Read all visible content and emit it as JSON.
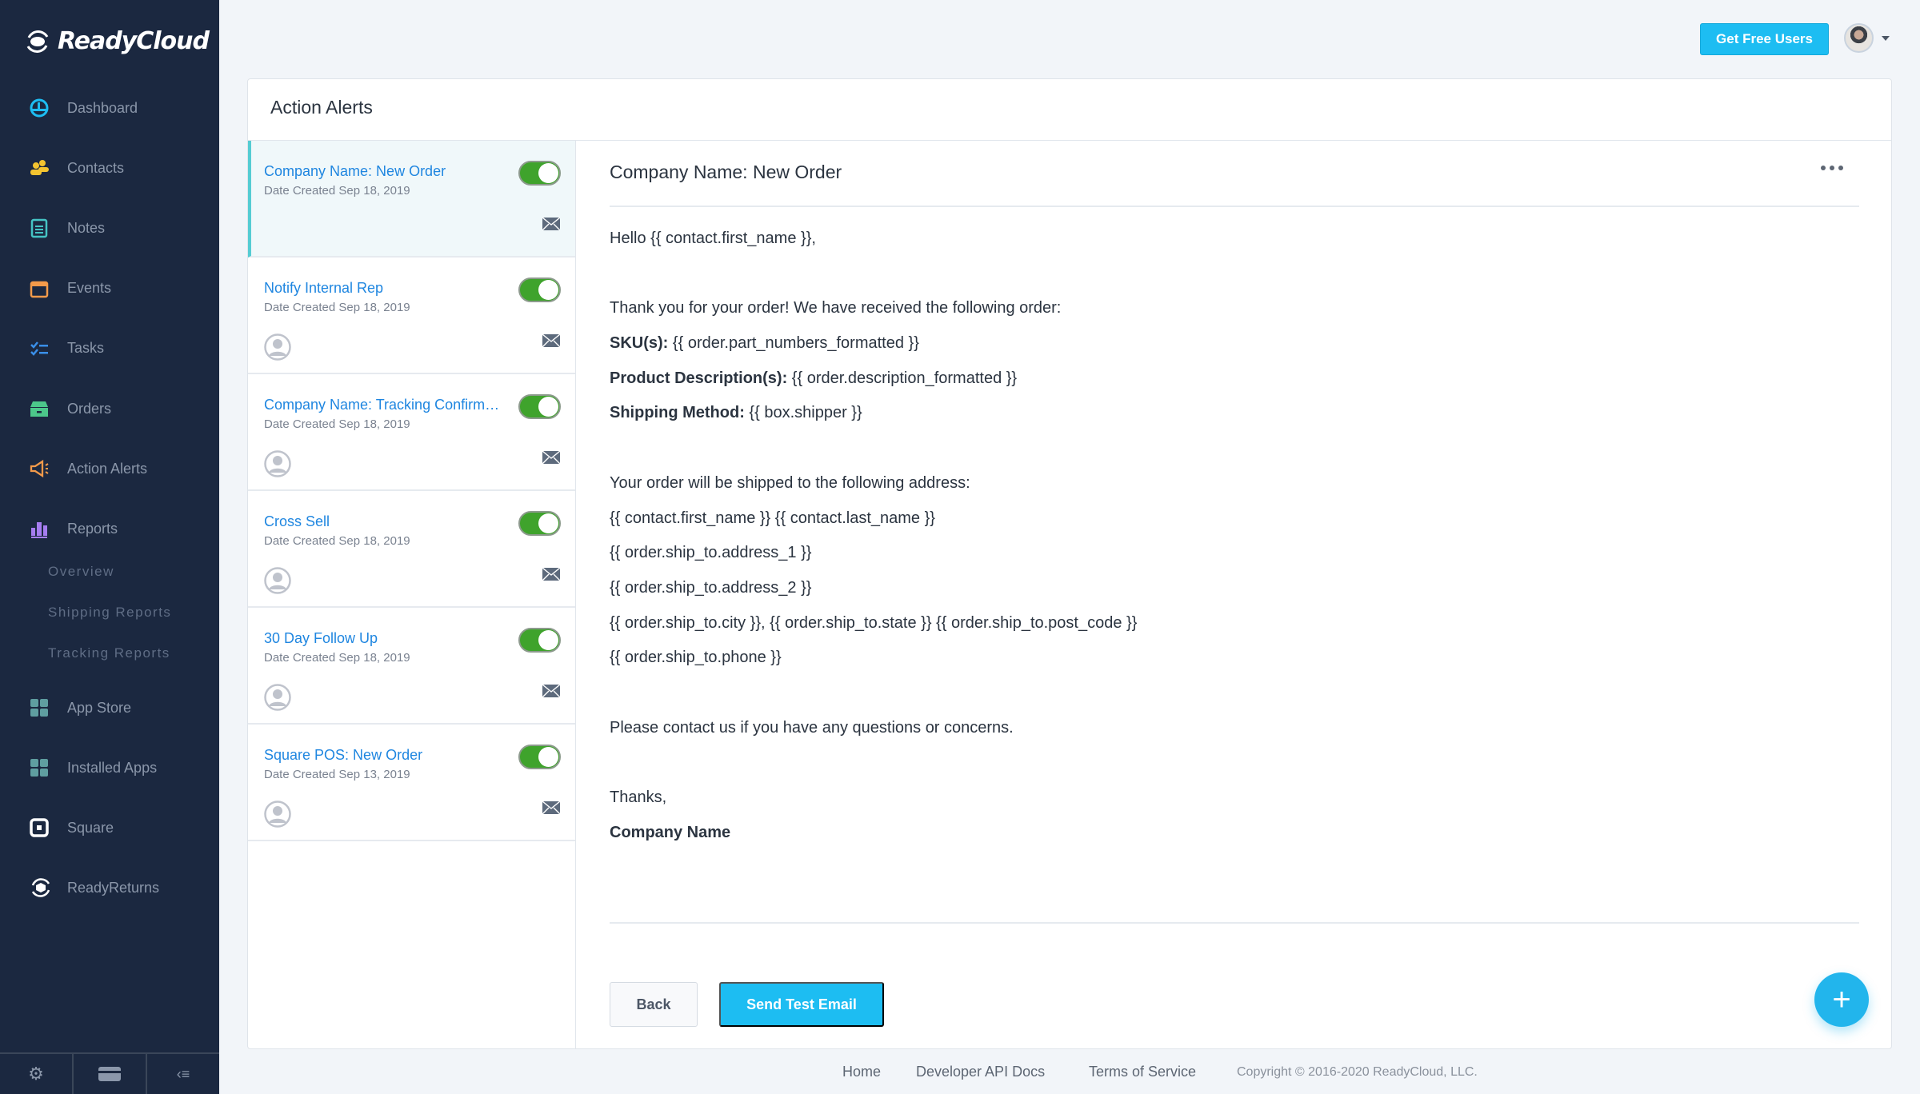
{
  "app": {
    "brand": "ReadyCloud"
  },
  "colors": {
    "sidebar": "#1b2840",
    "accent": "#1dbdf2",
    "toggle_on": "#3fa32c",
    "link": "#1f86e0"
  },
  "sidebar": {
    "items": [
      {
        "label": "Dashboard",
        "icon": "dashboard-icon"
      },
      {
        "label": "Contacts",
        "icon": "contacts-icon"
      },
      {
        "label": "Notes",
        "icon": "notes-icon"
      },
      {
        "label": "Events",
        "icon": "calendar-icon"
      },
      {
        "label": "Tasks",
        "icon": "tasks-icon"
      },
      {
        "label": "Orders",
        "icon": "box-icon"
      },
      {
        "label": "Action Alerts",
        "icon": "megaphone-icon"
      },
      {
        "label": "Reports",
        "icon": "bar-chart-icon"
      }
    ],
    "sub_items": [
      "Overview",
      "Shipping Reports",
      "Tracking Reports"
    ],
    "items2": [
      {
        "label": "App Store",
        "icon": "grid-icon"
      },
      {
        "label": "Installed Apps",
        "icon": "grid-icon"
      },
      {
        "label": "Square",
        "icon": "square-icon"
      },
      {
        "label": "ReadyReturns",
        "icon": "readyreturns-icon"
      }
    ],
    "bottom": [
      "gear-icon",
      "card-icon",
      "collapse-icon"
    ]
  },
  "header": {
    "get_free_users": "Get Free Users"
  },
  "card": {
    "title": "Action Alerts"
  },
  "alerts": [
    {
      "title": "Company Name: New Order",
      "date": "Date Created Sep 18, 2019",
      "enabled": true,
      "active": true,
      "has_avatar": false
    },
    {
      "title": "Notify Internal Rep",
      "date": "Date Created Sep 18, 2019",
      "enabled": true,
      "active": false,
      "has_avatar": true
    },
    {
      "title": "Company Name: Tracking Confirmation",
      "date": "Date Created Sep 18, 2019",
      "enabled": true,
      "active": false,
      "has_avatar": true
    },
    {
      "title": "Cross Sell",
      "date": "Date Created Sep 18, 2019",
      "enabled": true,
      "active": false,
      "has_avatar": true
    },
    {
      "title": "30 Day Follow Up",
      "date": "Date Created Sep 18, 2019",
      "enabled": true,
      "active": false,
      "has_avatar": true
    },
    {
      "title": "Square POS: New Order",
      "date": "Date Created Sep 13, 2019",
      "enabled": true,
      "active": false,
      "has_avatar": true
    }
  ],
  "detail": {
    "title": "Company Name: New Order",
    "lines": [
      {
        "label": "",
        "text": "Hello {{ contact.first_name }},"
      },
      {
        "label": "",
        "text": ""
      },
      {
        "label": "",
        "text": "Thank you for your order! We have received the following order:"
      },
      {
        "label": "SKU(s):",
        "text": " {{ order.part_numbers_formatted }}"
      },
      {
        "label": "Product Description(s):",
        "text": " {{ order.description_formatted }}"
      },
      {
        "label": "Shipping Method:",
        "text": " {{ box.shipper }}"
      },
      {
        "label": "",
        "text": ""
      },
      {
        "label": "",
        "text": "Your order will be shipped to the following address:"
      },
      {
        "label": "",
        "text": "{{ contact.first_name }} {{ contact.last_name }}"
      },
      {
        "label": "",
        "text": "{{ order.ship_to.address_1 }}"
      },
      {
        "label": "",
        "text": "{{ order.ship_to.address_2 }}"
      },
      {
        "label": "",
        "text": "{{ order.ship_to.city }}, {{ order.ship_to.state }} {{ order.ship_to.post_code }}"
      },
      {
        "label": "",
        "text": "{{ order.ship_to.phone }}"
      },
      {
        "label": "",
        "text": ""
      },
      {
        "label": "",
        "text": "Please contact us if you have any questions or concerns."
      },
      {
        "label": "",
        "text": ""
      },
      {
        "label": "",
        "text": "Thanks,"
      },
      {
        "label": "Company Name",
        "text": ""
      }
    ],
    "back": "Back",
    "send_test": "Send Test Email"
  },
  "footer": {
    "home": "Home",
    "api": "Developer API Docs",
    "terms": "Terms of Service",
    "copyright": "Copyright © 2016-2020 ReadyCloud, LLC."
  }
}
